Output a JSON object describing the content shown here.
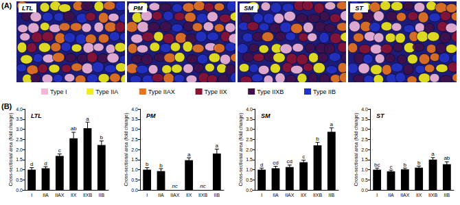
{
  "panel_labels": [
    "(A)",
    "(B)"
  ],
  "micrographs": {
    "panels": [
      "LTL",
      "PM",
      "SM",
      "ST"
    ],
    "legend": [
      {
        "label": "Type I",
        "color": "#f2b8da"
      },
      {
        "label": "Type IIA",
        "color": "#f2ee1a"
      },
      {
        "label": "Type IIAX",
        "color": "#e8741e"
      },
      {
        "label": "Type IIX",
        "color": "#8c1232"
      },
      {
        "label": "Type IIXB",
        "color": "#40104a"
      },
      {
        "label": "Type IIB",
        "color": "#2232c4"
      }
    ]
  },
  "chart_data": [
    {
      "type": "bar",
      "title": "LTL",
      "y_label": "Cross-sectional area (fold change)",
      "categories": [
        "I",
        "IIA",
        "IIAX",
        "IIX",
        "IIXB",
        "IIB"
      ],
      "values": [
        1.0,
        1.07,
        1.68,
        2.55,
        3.05,
        2.22
      ],
      "errors": [
        0.1,
        0.08,
        0.1,
        0.3,
        0.3,
        0.2
      ],
      "letters": [
        "d",
        "d",
        "c",
        "ab",
        "a",
        "b"
      ],
      "color": "#000000",
      "ylim": [
        0,
        4
      ],
      "yticks": [
        {
          "value": 0,
          "label": "0.0"
        },
        0.5,
        {
          "value": 1,
          "label": "1.0"
        },
        1.5,
        {
          "value": 2,
          "label": "2.0"
        },
        2.5,
        {
          "value": 3,
          "label": "3.0"
        },
        3.5,
        {
          "value": 4,
          "label": "4.0"
        }
      ],
      "grid": false
    },
    {
      "type": "bar",
      "title": "PM",
      "y_label": "Cross-sectional area (fold change)",
      "categories": [
        "I",
        "IIA",
        "IIAX",
        "IIX",
        "IIXB",
        "IIB"
      ],
      "values": [
        1.0,
        0.93,
        null,
        1.47,
        null,
        1.8
      ],
      "errors": [
        0.1,
        0.12,
        null,
        0.12,
        null,
        0.22
      ],
      "letters": [
        "b",
        "b",
        "nc",
        "a",
        "nc",
        "a"
      ],
      "color": "#000000",
      "ylim": [
        0,
        4
      ],
      "yticks": [
        {
          "value": 0,
          "label": "0.0"
        },
        0.5,
        {
          "value": 1,
          "label": "1.0"
        },
        1.5,
        {
          "value": 2,
          "label": "2.0"
        },
        2.5,
        {
          "value": 3,
          "label": "3.0"
        },
        3.5,
        {
          "value": 4,
          "label": "4.0"
        }
      ],
      "grid": false
    },
    {
      "type": "bar",
      "title": "SM",
      "y_label": "Cross-sectional area (fold change)",
      "categories": [
        "I",
        "IIA",
        "IIAX",
        "IIX",
        "IIXB",
        "IIB"
      ],
      "values": [
        1.0,
        1.07,
        1.13,
        1.37,
        2.2,
        2.87
      ],
      "errors": [
        0.08,
        0.1,
        0.1,
        0.1,
        0.15,
        0.2
      ],
      "letters": [
        "d",
        "cd",
        "cd",
        "c",
        "b",
        "a"
      ],
      "color": "#000000",
      "ylim": [
        0,
        4
      ],
      "yticks": [
        {
          "value": 0,
          "label": "0.0"
        },
        0.5,
        {
          "value": 1,
          "label": "1.0"
        },
        1.5,
        {
          "value": 2,
          "label": "2.0"
        },
        2.5,
        {
          "value": 3,
          "label": "3.0"
        },
        3.5,
        {
          "value": 4,
          "label": "4.0"
        }
      ],
      "grid": false
    },
    {
      "type": "bar",
      "title": "ST",
      "y_label": "Cross-sectional area (fold change)",
      "categories": [
        "I",
        "IIA",
        "IIAX",
        "IIX",
        "IIXB",
        "IIB"
      ],
      "values": [
        1.0,
        0.92,
        1.02,
        1.1,
        1.5,
        1.27
      ],
      "errors": [
        0.08,
        0.06,
        0.06,
        0.08,
        0.1,
        0.12
      ],
      "letters": [
        "bc",
        "c",
        "b",
        "b",
        "a",
        "ab"
      ],
      "color": "#000000",
      "ylim": [
        0,
        4
      ],
      "yticks": [
        {
          "value": 0,
          "label": "0.0"
        },
        0.5,
        {
          "value": 1,
          "label": "1.0"
        },
        1.5,
        {
          "value": 2,
          "label": "2.0"
        },
        2.5,
        {
          "value": 3,
          "label": "3.0"
        },
        3.5,
        {
          "value": 4,
          "label": "4.0"
        }
      ],
      "grid": false
    }
  ]
}
